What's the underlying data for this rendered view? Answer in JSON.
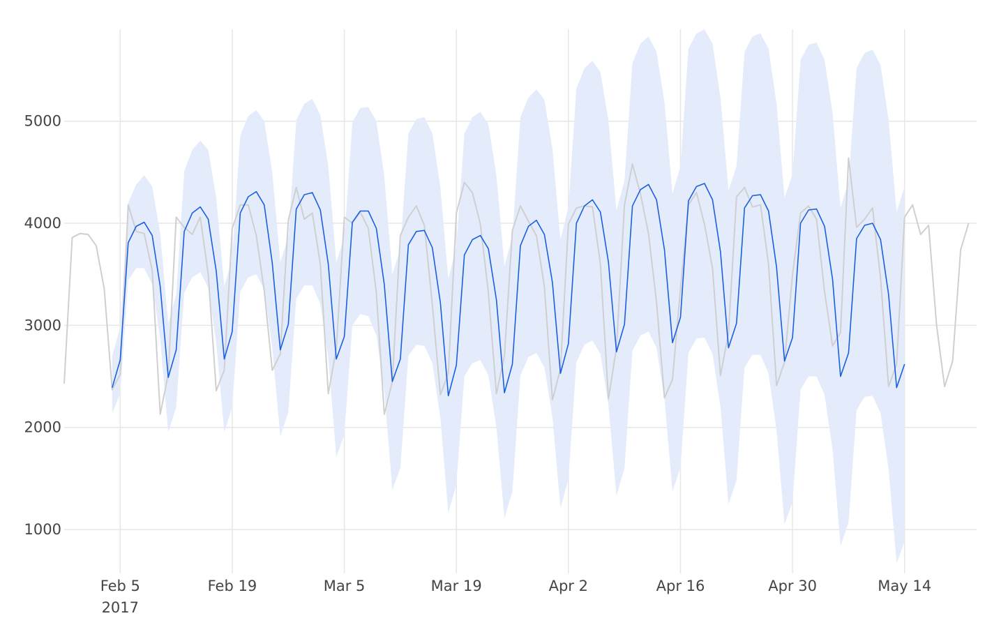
{
  "chart_data": {
    "type": "line",
    "title": "",
    "xlabel": "",
    "ylabel": "",
    "x_tick_labels": [
      {
        "date": "2017-02-05",
        "label": "Feb 5",
        "sublabel": "2017"
      },
      {
        "date": "2017-02-19",
        "label": "Feb 19",
        "sublabel": ""
      },
      {
        "date": "2017-03-05",
        "label": "Mar 5",
        "sublabel": ""
      },
      {
        "date": "2017-03-19",
        "label": "Mar 19",
        "sublabel": ""
      },
      {
        "date": "2017-04-02",
        "label": "Apr 2",
        "sublabel": ""
      },
      {
        "date": "2017-04-16",
        "label": "Apr 16",
        "sublabel": ""
      },
      {
        "date": "2017-04-30",
        "label": "Apr 30",
        "sublabel": ""
      },
      {
        "date": "2017-05-14",
        "label": "May 14",
        "sublabel": ""
      }
    ],
    "y_ticks": [
      1000,
      2000,
      3000,
      4000,
      5000
    ],
    "xlim": [
      "2017-01-29",
      "2017-05-23"
    ],
    "ylim": [
      570,
      5900
    ],
    "grid": true,
    "legend": "none",
    "colors": {
      "observed": "#cfcfcf",
      "forecast": "#1a5fe0",
      "band": "#e4ecfc"
    },
    "observed": {
      "start": "2017-01-29",
      "values": [
        2430,
        3860,
        3900,
        3890,
        3780,
        3360,
        2370,
        2520,
        4180,
        3920,
        3900,
        3540,
        2130,
        2520,
        4060,
        3960,
        3890,
        4060,
        3500,
        2360,
        2560,
        3950,
        4180,
        4180,
        3880,
        3340,
        2560,
        2720,
        4030,
        4350,
        4040,
        4100,
        3600,
        2330,
        2770,
        4060,
        4000,
        4110,
        3950,
        3320,
        2130,
        2450,
        3880,
        4060,
        4170,
        3980,
        3200,
        2320,
        2530,
        4100,
        4400,
        4300,
        3990,
        3320,
        2330,
        2700,
        3930,
        4170,
        4020,
        3880,
        3380,
        2270,
        2570,
        3990,
        4150,
        4170,
        4160,
        3600,
        2280,
        2780,
        4180,
        4580,
        4290,
        3900,
        3230,
        2290,
        2470,
        3360,
        4180,
        4300,
        3990,
        3560,
        2510,
        2920,
        4260,
        4350,
        4160,
        4180,
        3600,
        2410,
        2640,
        3500,
        4100,
        4170,
        4040,
        3330,
        2800,
        2930,
        4640,
        3960,
        4040,
        4150,
        3460,
        2400,
        2620,
        4060,
        4180,
        3890,
        3980,
        3000,
        2400,
        2650,
        3740,
        4000
      ]
    },
    "forecast": {
      "start": "2017-02-04",
      "values": [
        2390,
        2660,
        3810,
        3970,
        4010,
        3880,
        3380,
        2490,
        2760,
        3920,
        4100,
        4160,
        4040,
        3530,
        2670,
        2940,
        4100,
        4260,
        4310,
        4180,
        3610,
        2760,
        3010,
        4140,
        4280,
        4300,
        4130,
        3600,
        2670,
        2890,
        4010,
        4120,
        4120,
        3950,
        3400,
        2450,
        2670,
        3790,
        3920,
        3930,
        3760,
        3220,
        2310,
        2610,
        3690,
        3840,
        3880,
        3750,
        3250,
        2340,
        2620,
        3780,
        3970,
        4030,
        3890,
        3420,
        2530,
        2820,
        4000,
        4170,
        4230,
        4110,
        3620,
        2740,
        3010,
        4170,
        4330,
        4380,
        4230,
        3740,
        2830,
        3080,
        4220,
        4360,
        4390,
        4230,
        3720,
        2780,
        3020,
        4150,
        4270,
        4280,
        4120,
        3570,
        2650,
        2880,
        4000,
        4130,
        4140,
        3970,
        3450,
        2500,
        2730,
        3850,
        3980,
        4000,
        3840,
        3300,
        2390,
        2620
      ]
    },
    "interval_upper": {
      "start": "2017-02-04",
      "values": [
        2700,
        2980,
        4200,
        4380,
        4470,
        4360,
        3900,
        3020,
        3300,
        4510,
        4720,
        4810,
        4720,
        4250,
        3380,
        3660,
        4860,
        5050,
        5110,
        5000,
        4500,
        3620,
        3870,
        5010,
        5170,
        5220,
        5060,
        4560,
        3620,
        3860,
        4990,
        5130,
        5140,
        5000,
        4460,
        3500,
        3750,
        4880,
        5020,
        5040,
        4880,
        4350,
        3450,
        3780,
        4880,
        5040,
        5090,
        4970,
        4470,
        3580,
        3870,
        5040,
        5230,
        5310,
        5210,
        4730,
        3840,
        4160,
        5320,
        5520,
        5590,
        5480,
        5010,
        4120,
        4420,
        5570,
        5760,
        5830,
        5680,
        5190,
        4290,
        4560,
        5710,
        5860,
        5900,
        5760,
        5230,
        4320,
        4560,
        5680,
        5830,
        5860,
        5710,
        5170,
        4250,
        4480,
        5600,
        5750,
        5770,
        5600,
        5080,
        4150,
        4410,
        5520,
        5670,
        5700,
        5550,
        5010,
        4110,
        4360
      ]
    },
    "interval_lower": {
      "start": "2017-02-04",
      "values": [
        2140,
        2330,
        3440,
        3560,
        3560,
        3400,
        2860,
        1950,
        2200,
        3320,
        3470,
        3520,
        3370,
        2830,
        1950,
        2200,
        3330,
        3470,
        3500,
        3350,
        2780,
        1910,
        2150,
        3260,
        3390,
        3390,
        3210,
        2680,
        1710,
        1930,
        3000,
        3110,
        3090,
        2900,
        2350,
        1390,
        1600,
        2700,
        2810,
        2800,
        2630,
        2090,
        1160,
        1440,
        2500,
        2630,
        2660,
        2510,
        2000,
        1110,
        1370,
        2510,
        2690,
        2730,
        2590,
        2100,
        1210,
        1490,
        2640,
        2810,
        2850,
        2720,
        2220,
        1330,
        1600,
        2750,
        2900,
        2940,
        2780,
        2280,
        1370,
        1610,
        2730,
        2870,
        2880,
        2720,
        2200,
        1250,
        1480,
        2590,
        2710,
        2710,
        2530,
        1970,
        1050,
        1270,
        2370,
        2500,
        2500,
        2320,
        1780,
        840,
        1070,
        2170,
        2300,
        2310,
        2140,
        1590,
        670,
        880
      ]
    }
  }
}
